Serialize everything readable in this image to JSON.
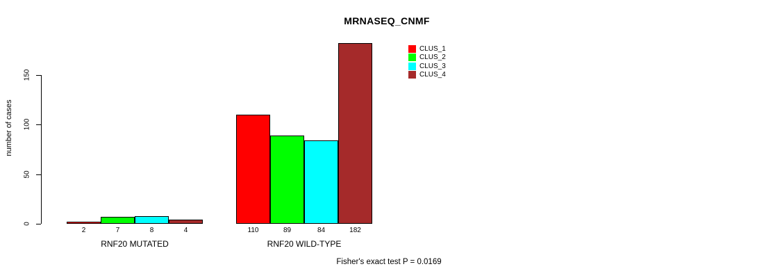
{
  "title": "MRNASEQ_CNMF",
  "y_axis_label": "number of cases",
  "footnote": "Fisher's exact test P = 0.0169",
  "colors": {
    "clus_1": "#ff0000",
    "clus_2": "#00ff00",
    "clus_3": "#00ffff",
    "clus_4": "#a52a2a",
    "bar_border": "#000000",
    "axis": "#000000",
    "background": "#ffffff"
  },
  "legend": {
    "entries": [
      {
        "label": "CLUS_1",
        "color": "#ff0000"
      },
      {
        "label": "CLUS_2",
        "color": "#00ff00"
      },
      {
        "label": "CLUS_3",
        "color": "#00ffff"
      },
      {
        "label": "CLUS_4",
        "color": "#a52a2a"
      }
    ]
  },
  "chart_data": {
    "type": "bar",
    "title": "MRNASEQ_CNMF",
    "xlabel": "",
    "ylabel": "number of cases",
    "categories": [
      "RNF20 MUTATED",
      "RNF20 WILD-TYPE"
    ],
    "series": [
      {
        "name": "CLUS_1",
        "color": "#ff0000",
        "values": [
          2,
          110
        ]
      },
      {
        "name": "CLUS_2",
        "color": "#00ff00",
        "values": [
          7,
          89
        ]
      },
      {
        "name": "CLUS_3",
        "color": "#00ffff",
        "values": [
          8,
          84
        ]
      },
      {
        "name": "CLUS_4",
        "color": "#a52a2a",
        "values": [
          4,
          182
        ]
      }
    ],
    "bar_value_labels": [
      [
        2,
        7,
        8,
        4
      ],
      [
        110,
        89,
        84,
        182
      ]
    ],
    "y_ticks": [
      0,
      50,
      100,
      150
    ],
    "ylim": [
      0,
      150
    ],
    "grid": false,
    "legend_position": "top-right",
    "annotation": "Fisher's exact test P = 0.0169"
  }
}
